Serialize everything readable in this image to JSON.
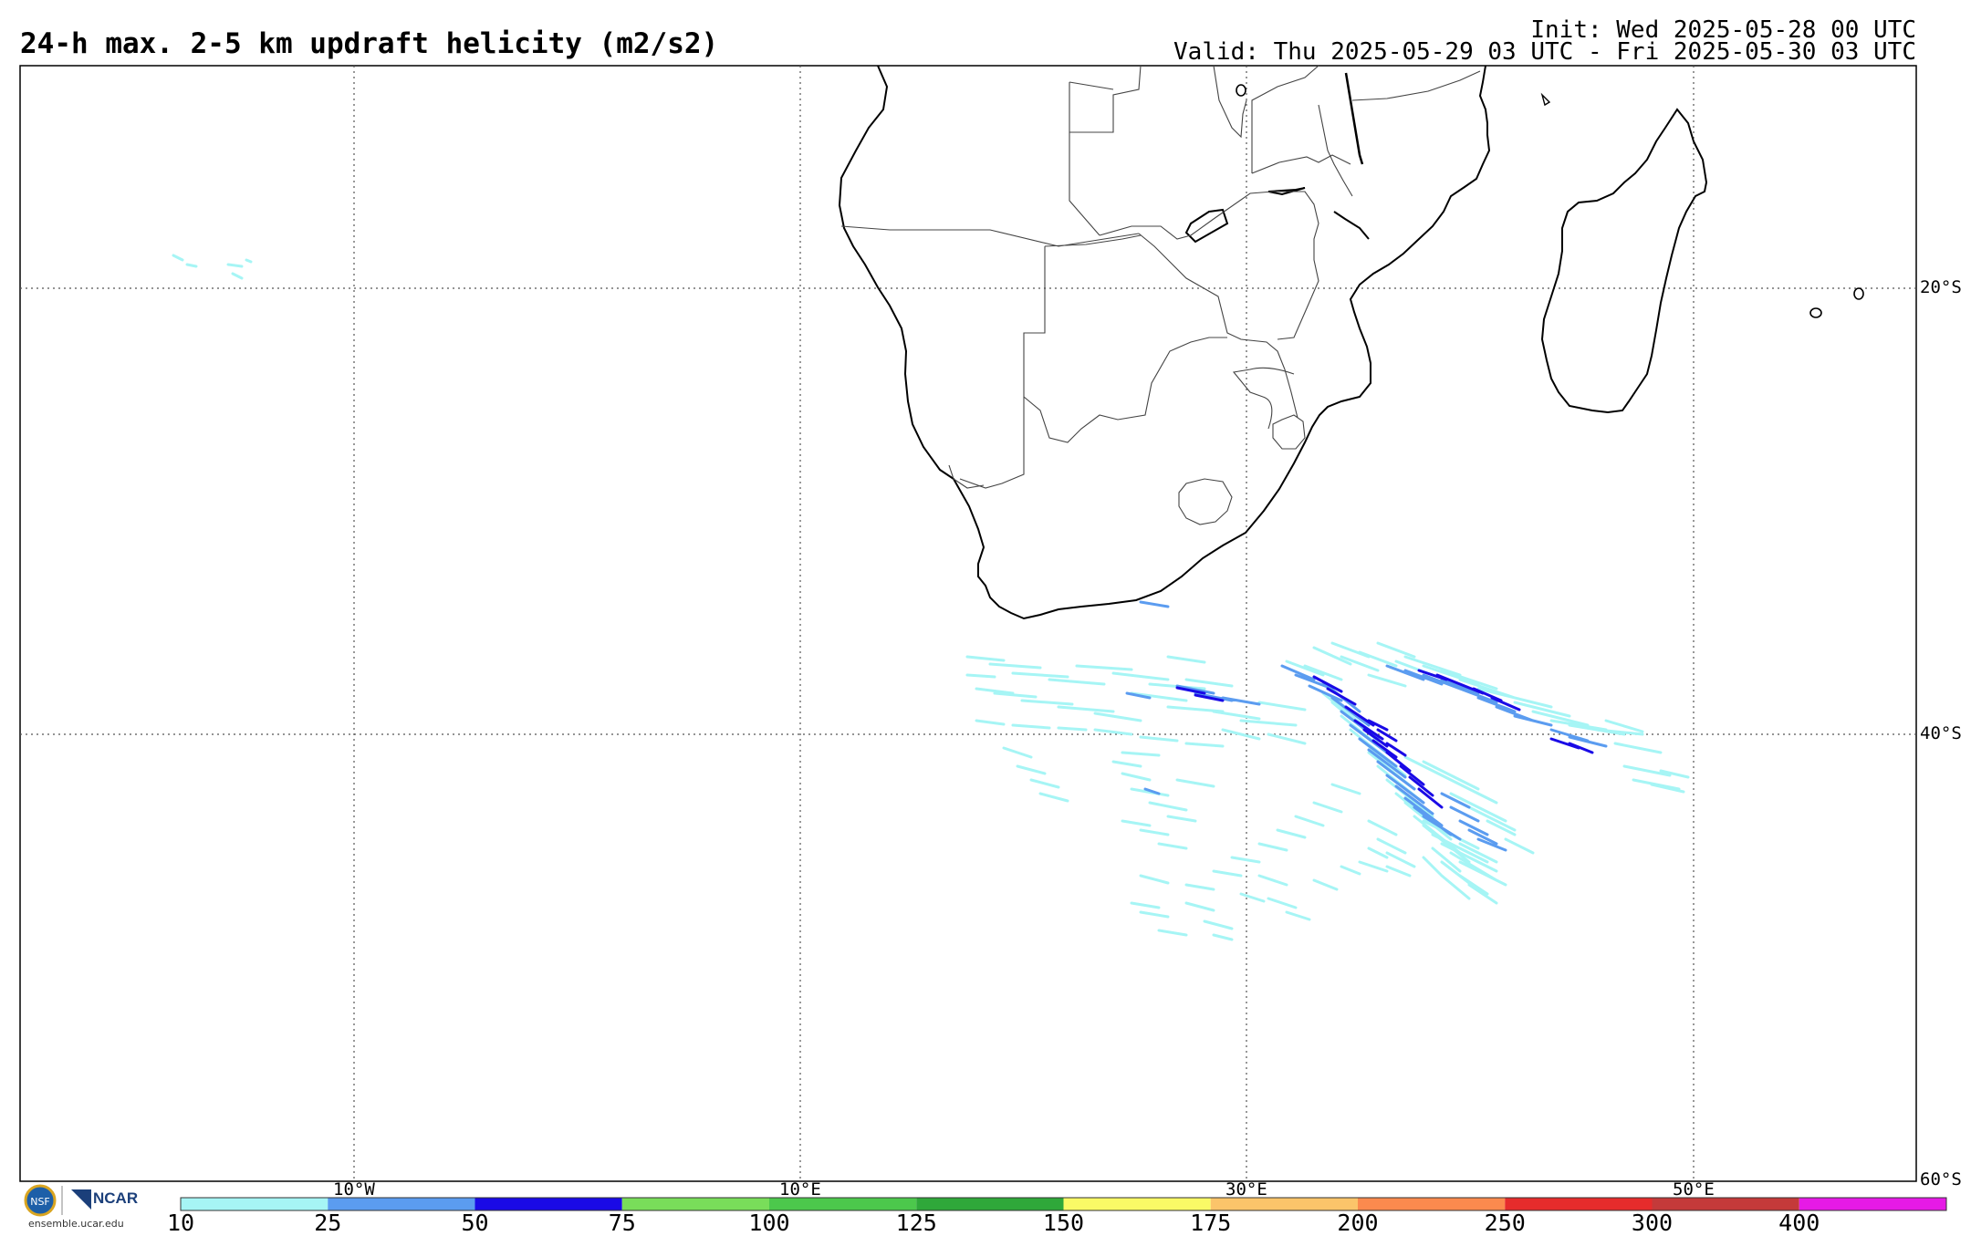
{
  "header": {
    "title": "24-h max. 2-5 km updraft helicity (m2/s2)",
    "init": "Init: Wed 2025-05-28 00 UTC",
    "valid": "Valid: Thu 2025-05-29 03 UTC - Fri 2025-05-30 03 UTC"
  },
  "map": {
    "lon_labels": [
      "10°W",
      "10°E",
      "30°E",
      "50°E"
    ],
    "lat_labels": [
      "20°S",
      "40°S",
      "60°S"
    ],
    "gridlines": "dotted"
  },
  "legend": {
    "ticks": [
      "10",
      "25",
      "50",
      "75",
      "100",
      "125",
      "150",
      "175",
      "200",
      "250",
      "300",
      "400"
    ],
    "colors": [
      "#a6f5f5",
      "#5b9cf0",
      "#1a0ae6",
      "#79dd5a",
      "#4cc84c",
      "#2fa83a",
      "#fafa66",
      "#fbc46a",
      "#fb8a4e",
      "#e62c2c",
      "#c43a3a",
      "#e61ae6"
    ]
  },
  "logo": {
    "org": "NCAR",
    "url": "ensemble.ucar.edu"
  }
}
